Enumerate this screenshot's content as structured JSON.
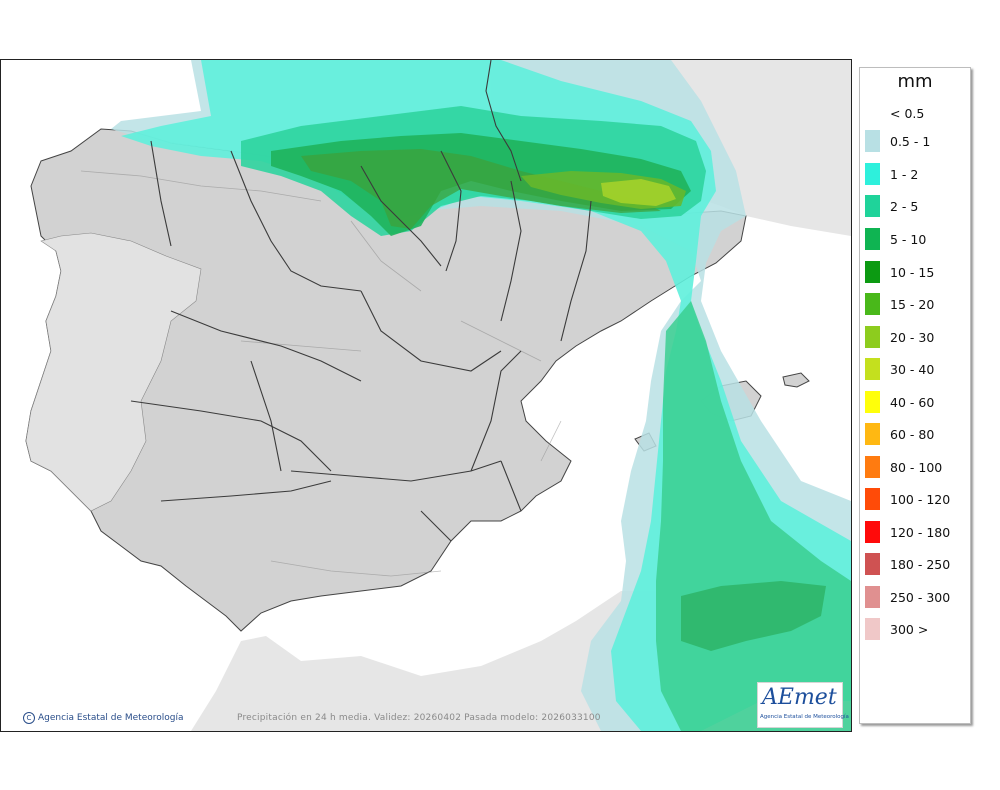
{
  "legend": {
    "title": "mm",
    "items": [
      {
        "label": "< 0.5",
        "color": ""
      },
      {
        "label": "0.5 - 1",
        "color": "#b8e0e4"
      },
      {
        "label": "1 - 2",
        "color": "#2ef0dc"
      },
      {
        "label": "2 - 5",
        "color": "#1fd39a"
      },
      {
        "label": "5 - 10",
        "color": "#0fb452"
      },
      {
        "label": "10 - 15",
        "color": "#0c9a12"
      },
      {
        "label": "15 - 20",
        "color": "#49b81a"
      },
      {
        "label": "20 - 30",
        "color": "#8dcc1e"
      },
      {
        "label": "30 - 40",
        "color": "#c4e01e"
      },
      {
        "label": "40 - 60",
        "color": "#ffff0a"
      },
      {
        "label": "60 - 80",
        "color": "#ffb812"
      },
      {
        "label": "80 - 100",
        "color": "#ff7b10"
      },
      {
        "label": "100 - 120",
        "color": "#ff4b08"
      },
      {
        "label": "120 - 180",
        "color": "#ff0a0a"
      },
      {
        "label": "180 - 250",
        "color": "#cf5252"
      },
      {
        "label": "250 - 300",
        "color": "#e09090"
      },
      {
        "label": "300 >",
        "color": "#f0c8c8"
      }
    ]
  },
  "footer": {
    "credit": "Agencia Estatal de Meteorología",
    "copyright_symbol": "C",
    "validity": "Precipitación en 24 h media. Validez: 20260402 Pasada modelo: 2026033100"
  },
  "logo": {
    "mark": "AEmet",
    "subtitle": "Agencia Estatal de Meteorología"
  },
  "colors": {
    "land": "#d6d6d6",
    "foreign_land": "#e4e4e4",
    "sea": "#ffffff",
    "borders": "#333333"
  }
}
